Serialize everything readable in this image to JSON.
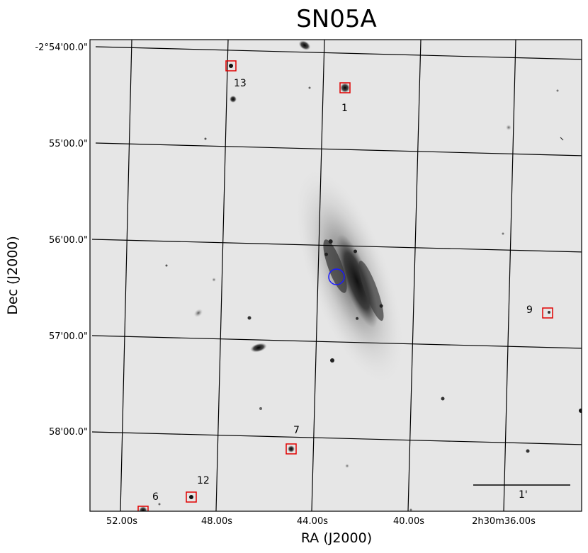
{
  "figure": {
    "title": "SN05A",
    "xlabel": "RA (J2000)",
    "ylabel": "Dec (J2000)",
    "ra_ticks": [
      "52.00s",
      "48.00s",
      "44.00s",
      "40.00s",
      "2h30m36.00s"
    ],
    "dec_ticks": [
      "-2°54'00.0\"",
      "55'00.0\"",
      "56'00.0\"",
      "57'00.0\"",
      "58'00.0\""
    ],
    "scale_label": "1'",
    "markers": [
      {
        "id": "13",
        "label": "13"
      },
      {
        "id": "1",
        "label": "1"
      },
      {
        "id": "9",
        "label": "9"
      },
      {
        "id": "7",
        "label": "7"
      },
      {
        "id": "12",
        "label": "12"
      },
      {
        "id": "6",
        "label": "6"
      }
    ],
    "colors": {
      "background": "#e6e6e6",
      "grid": "#000000",
      "marker_box": "#e00000",
      "target_circle": "#1a1aff",
      "stars": "#000000"
    }
  }
}
